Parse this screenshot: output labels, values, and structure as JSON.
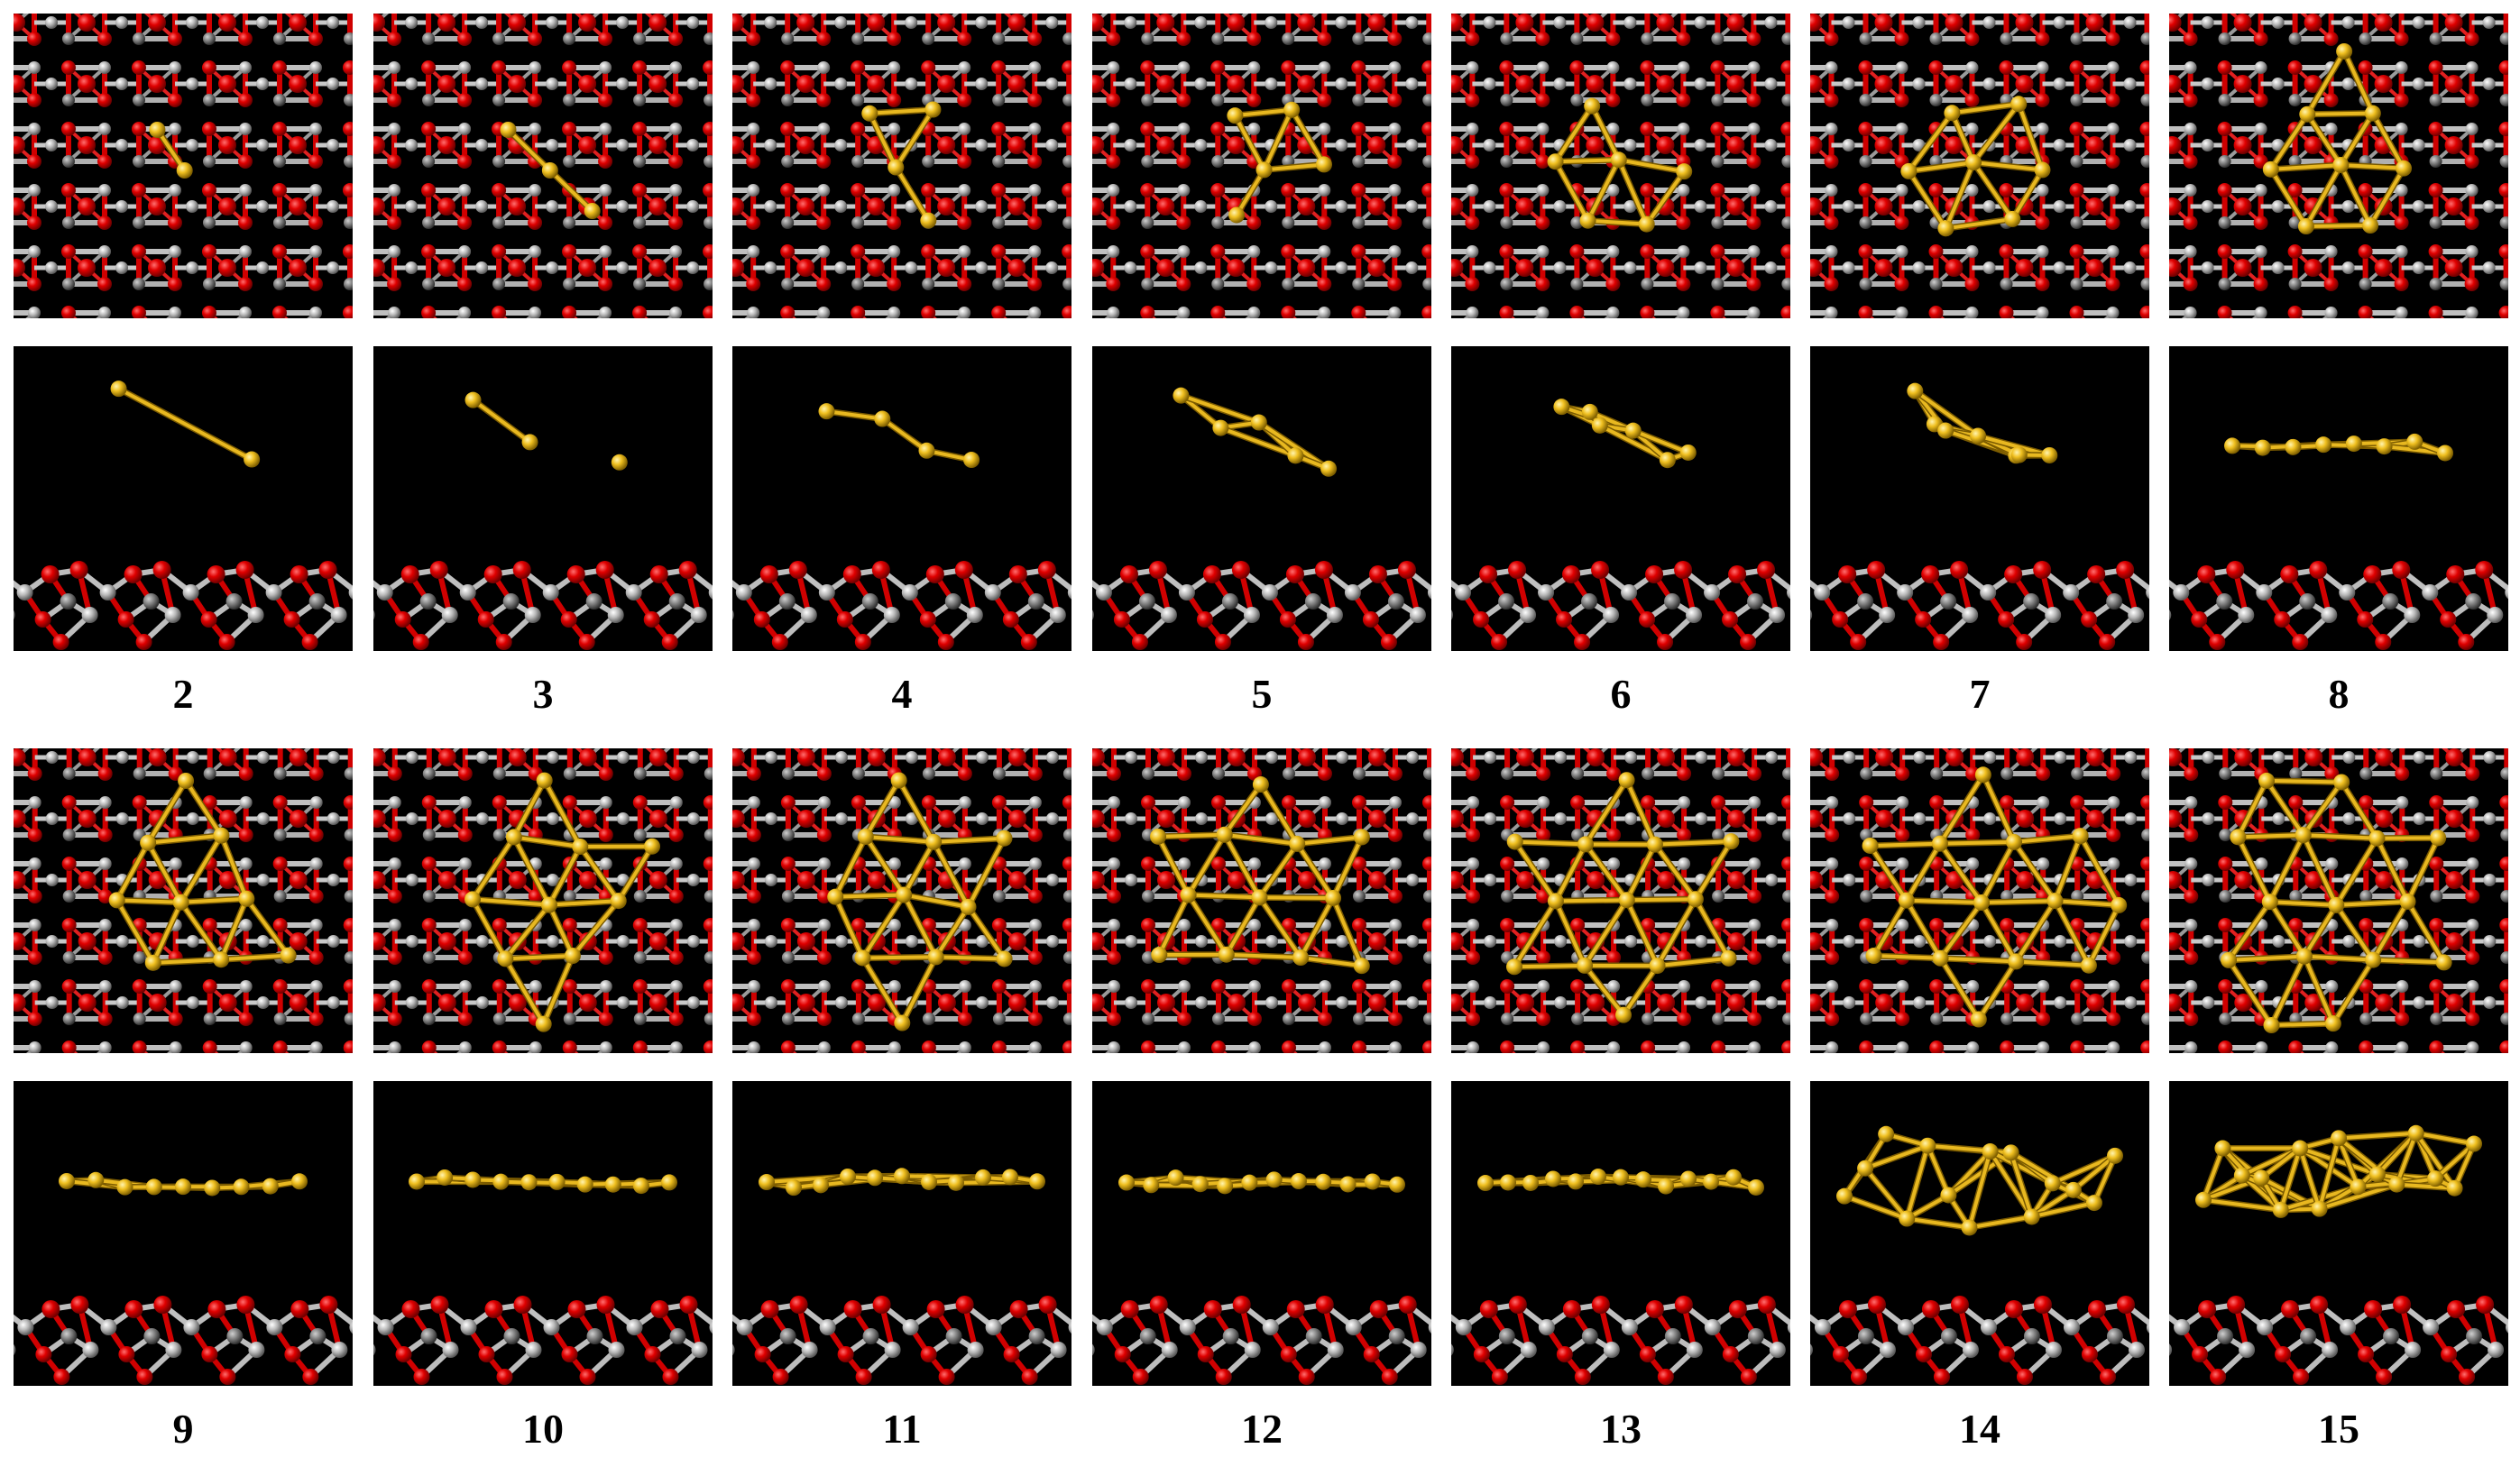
{
  "figure": {
    "rows": [
      {
        "labels": [
          "2",
          "3",
          "4",
          "5",
          "6",
          "7",
          "8"
        ]
      },
      {
        "labels": [
          "9",
          "10",
          "11",
          "12",
          "13",
          "14",
          "15"
        ]
      }
    ],
    "colors": {
      "background": "#000000",
      "oxygen": "#e00000",
      "metal_light": "#c8c8c8",
      "metal_dark": "#707070",
      "cluster_atom": "#f0c020",
      "cluster_bond": "#e8b820",
      "label": "#000000"
    }
  }
}
